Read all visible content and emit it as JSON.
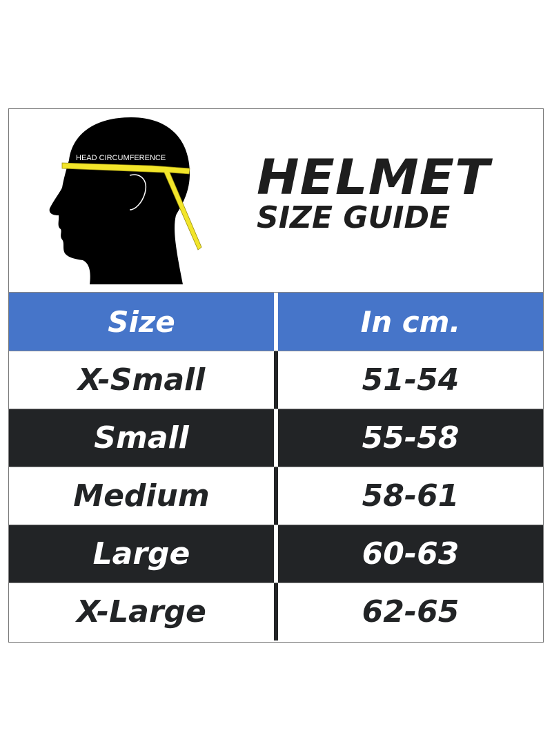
{
  "header": {
    "head_label": "HEAD CIRCUMFERENCE",
    "title_line1": "HELMET",
    "title_line2": "SIZE GUIDE"
  },
  "table": {
    "columns": [
      "Size",
      "In cm."
    ],
    "rows": [
      {
        "size": "X-Small",
        "cm": "51-54",
        "style": "white"
      },
      {
        "size": "Small",
        "cm": "55-58",
        "style": "dark"
      },
      {
        "size": "Medium",
        "cm": "58-61",
        "style": "white"
      },
      {
        "size": "Large",
        "cm": "60-63",
        "style": "dark"
      },
      {
        "size": "X-Large",
        "cm": "62-65",
        "style": "white"
      }
    ]
  },
  "colors": {
    "header_blue": "#4675c9",
    "dark_row": "#222426",
    "tape": "#f2e52a"
  }
}
